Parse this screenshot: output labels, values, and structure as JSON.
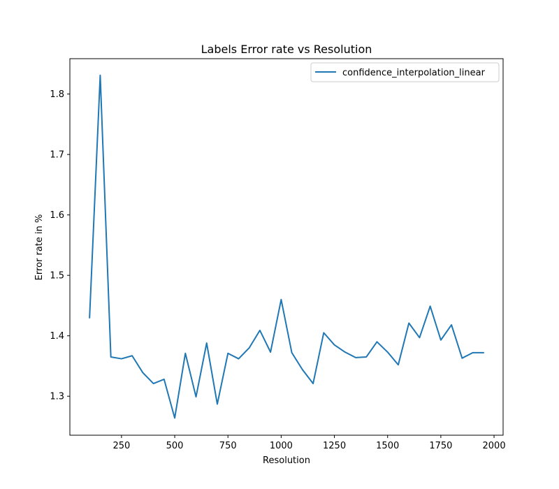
{
  "chart_data": {
    "type": "line",
    "title": "Labels Error rate vs Resolution",
    "xlabel": "Resolution",
    "ylabel": "Error rate in %",
    "xlim": [
      7.5,
      2042.5
    ],
    "ylim": [
      1.2355,
      1.8585
    ],
    "xticks": [
      250,
      500,
      750,
      1000,
      1250,
      1500,
      1750,
      2000
    ],
    "xtick_labels": [
      "250",
      "500",
      "750",
      "1000",
      "1250",
      "1500",
      "1750",
      "2000"
    ],
    "yticks": [
      1.3,
      1.4,
      1.5,
      1.6,
      1.7,
      1.8
    ],
    "ytick_labels": [
      "1.3",
      "1.4",
      "1.5",
      "1.6",
      "1.7",
      "1.8"
    ],
    "grid": false,
    "legend_position": "top-right",
    "series_color": "#1f77b4",
    "series": [
      {
        "name": "confidence_interpolation_linear",
        "x": [
          100,
          150,
          200,
          250,
          300,
          350,
          400,
          450,
          500,
          550,
          600,
          650,
          700,
          750,
          800,
          850,
          900,
          950,
          1000,
          1050,
          1100,
          1150,
          1200,
          1250,
          1300,
          1350,
          1400,
          1450,
          1500,
          1550,
          1600,
          1650,
          1700,
          1750,
          1800,
          1850,
          1900,
          1950
        ],
        "values": [
          1.43,
          1.831,
          1.365,
          1.362,
          1.367,
          1.339,
          1.321,
          1.328,
          1.264,
          1.371,
          1.299,
          1.388,
          1.287,
          1.371,
          1.362,
          1.38,
          1.409,
          1.373,
          1.46,
          1.372,
          1.344,
          1.321,
          1.405,
          1.385,
          1.373,
          1.364,
          1.365,
          1.39,
          1.373,
          1.352,
          1.421,
          1.397,
          1.449,
          1.393,
          1.418,
          1.363,
          1.372,
          1.372
        ]
      }
    ]
  }
}
